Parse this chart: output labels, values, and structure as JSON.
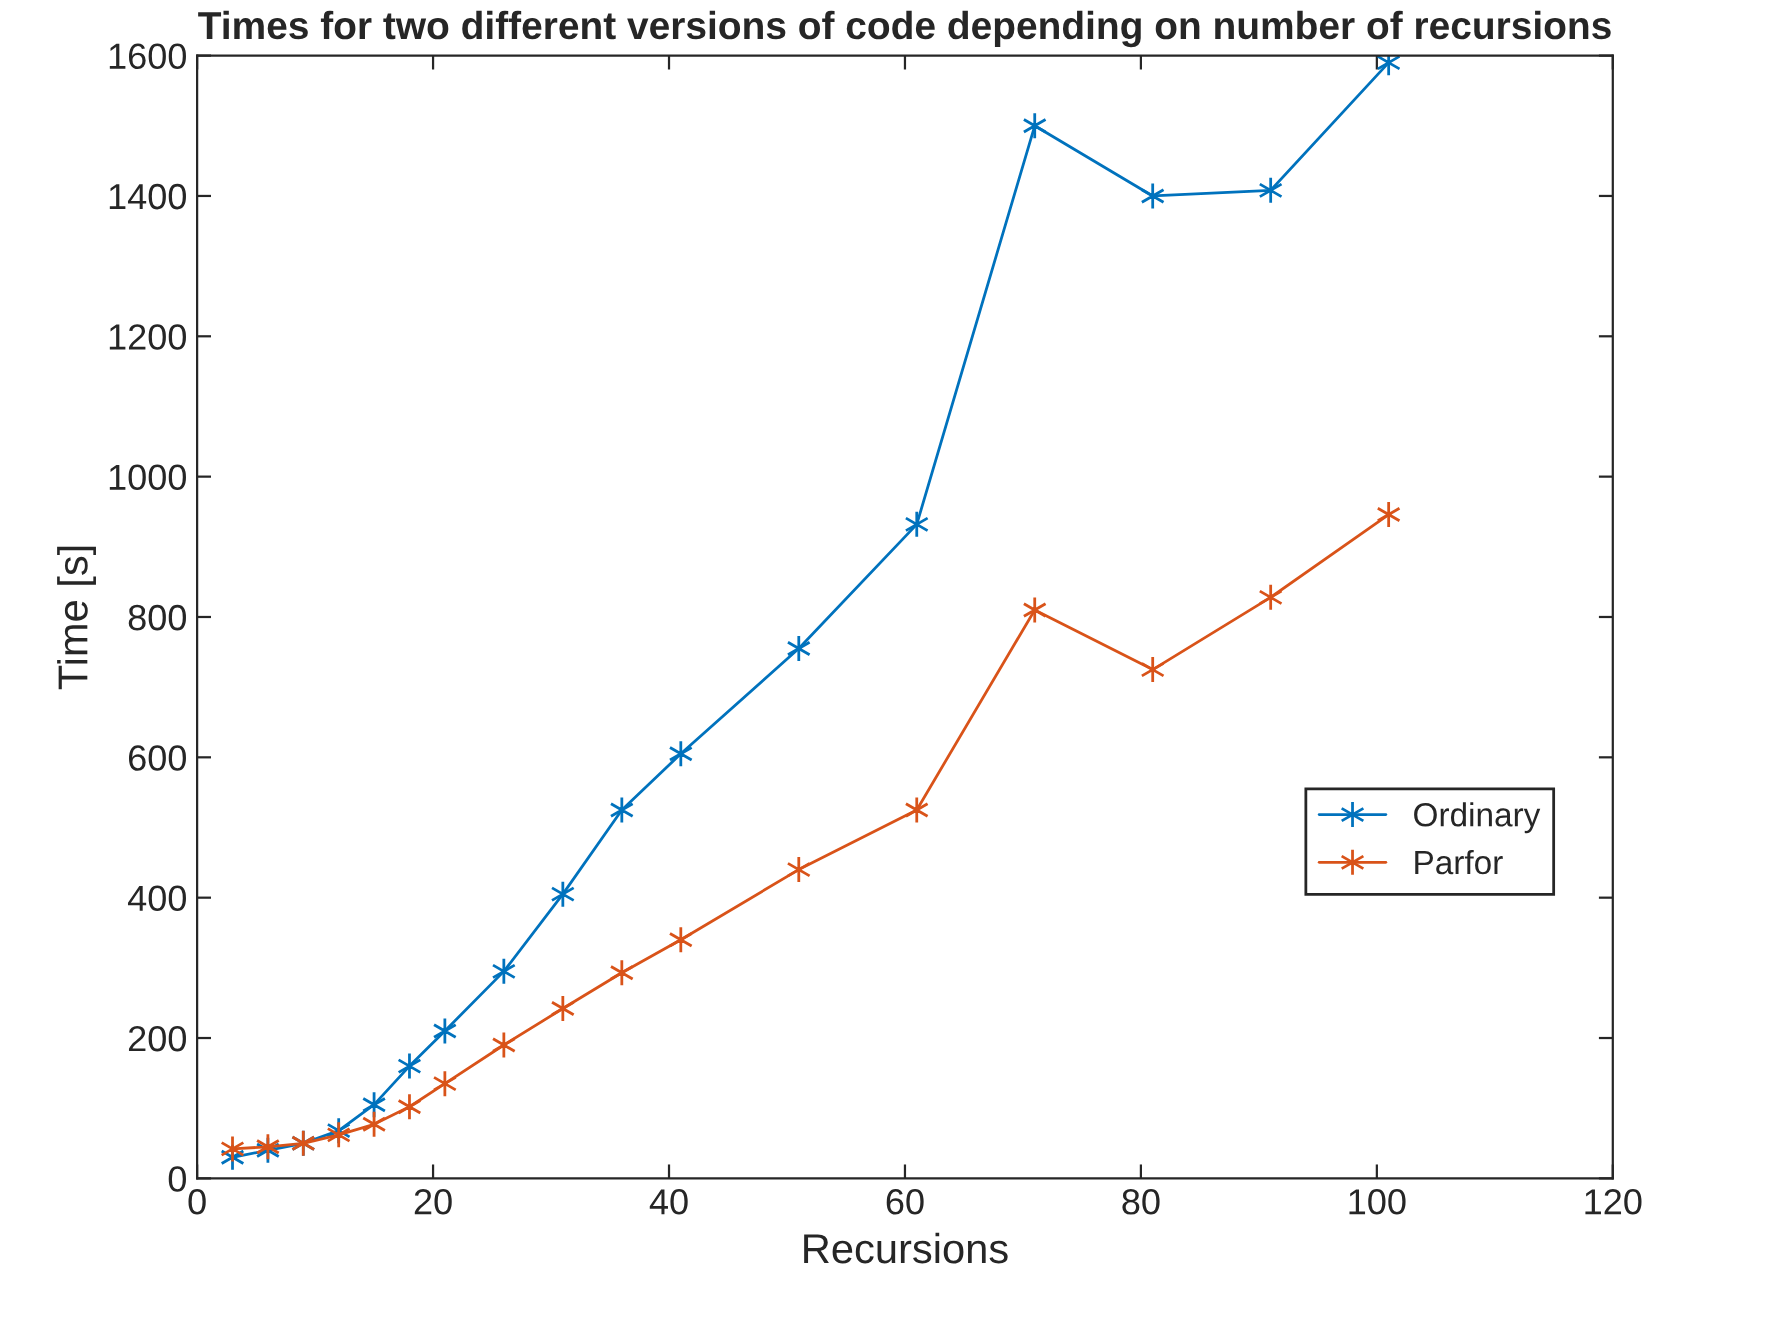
{
  "chart_data": {
    "type": "line",
    "title": "Times for two different versions of code depending on number of recursions",
    "xlabel": "Recursions",
    "ylabel": "Time [s]",
    "x": [
      3,
      6,
      9,
      12,
      15,
      18,
      21,
      26,
      31,
      36,
      41,
      51,
      61,
      71,
      81,
      91,
      101
    ],
    "series": [
      {
        "name": "Ordinary",
        "color": "#0072bd",
        "values": [
          30,
          40,
          50,
          68,
          105,
          160,
          210,
          295,
          405,
          525,
          605,
          755,
          932,
          1500,
          1400,
          1408,
          1590
        ]
      },
      {
        "name": "Parfor",
        "color": "#d95319",
        "values": [
          42,
          45,
          50,
          62,
          77,
          102,
          135,
          190,
          242,
          293,
          340,
          440,
          525,
          810,
          725,
          828,
          946
        ]
      }
    ],
    "xlim": [
      0,
      120
    ],
    "xticks": [
      0,
      20,
      40,
      60,
      80,
      100,
      120
    ],
    "ylim": [
      0,
      1600
    ],
    "yticks": [
      0,
      200,
      400,
      600,
      800,
      1000,
      1200,
      1400,
      1600
    ],
    "grid": false,
    "legend": "right",
    "marker": "cross",
    "line_style": "solid"
  }
}
